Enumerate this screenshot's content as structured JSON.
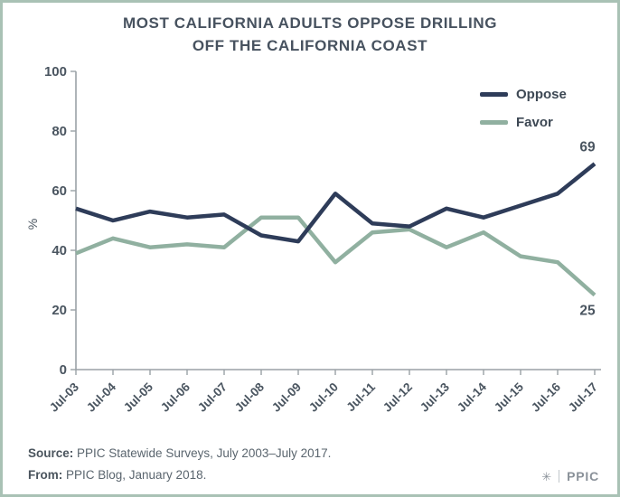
{
  "title": {
    "line1": "MOST CALIFORNIA ADULTS OPPOSE DRILLING",
    "line2": "OFF THE CALIFORNIA COAST"
  },
  "chart_data": {
    "type": "line",
    "categories": [
      "Jul-03",
      "Jul-04",
      "Jul-05",
      "Jul-06",
      "Jul-07",
      "Jul-08",
      "Jul-09",
      "Jul-10",
      "Jul-11",
      "Jul-12",
      "Jul-13",
      "Jul-14",
      "Jul-15",
      "Jul-16",
      "Jul-17"
    ],
    "series": [
      {
        "name": "Oppose",
        "color": "#2e3c59",
        "values": [
          54,
          50,
          53,
          51,
          52,
          45,
          43,
          59,
          49,
          48,
          54,
          51,
          55,
          59,
          69
        ],
        "end_label": "69"
      },
      {
        "name": "Favor",
        "color": "#90b0a0",
        "values": [
          39,
          44,
          41,
          42,
          41,
          51,
          51,
          36,
          46,
          47,
          41,
          46,
          38,
          36,
          25
        ],
        "end_label": "25"
      }
    ],
    "xlabel": "",
    "ylabel": "%",
    "ylim": [
      0,
      100
    ],
    "yticks": [
      0,
      20,
      40,
      60,
      80,
      100
    ],
    "grid": false,
    "legend_position": "top-right"
  },
  "footer": {
    "source_label": "Source:",
    "source_text": " PPIC Statewide Surveys, July 2003–July 2017.",
    "from_label": "From:",
    "from_text": " PPIC Blog, January 2018."
  },
  "logo": {
    "mark": "✳",
    "text": "PPIC"
  },
  "colors": {
    "border": "#a9c2b5",
    "axis": "#9aa1a6",
    "tick_text": "#4a5560",
    "value_label": "#4a5560",
    "title_text": "#47525f",
    "footer_text": "#5a656e",
    "logo": "#8a9199"
  }
}
